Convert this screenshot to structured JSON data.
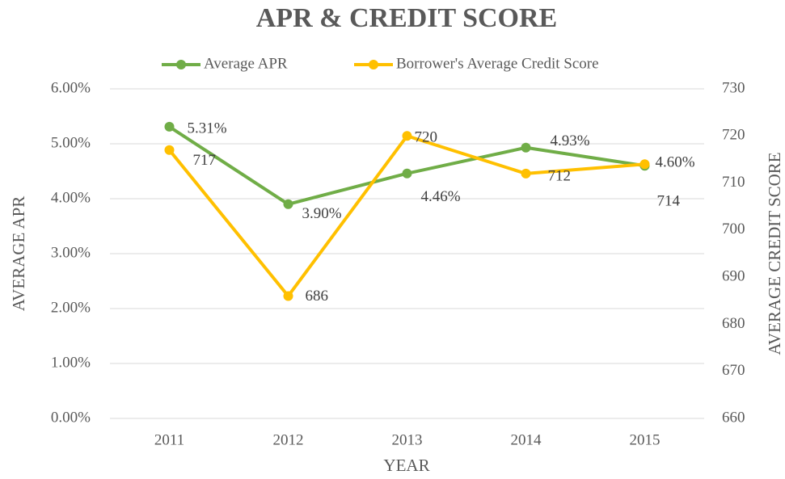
{
  "chart_data": {
    "type": "line",
    "title": "APR & CREDIT SCORE",
    "xlabel": "YEAR",
    "ylabel": "AVERAGE APR",
    "y2label": "AVERAGE CREDIT SCORE",
    "categories": [
      "2011",
      "2012",
      "2013",
      "2014",
      "2015"
    ],
    "series": [
      {
        "name": "Average APR",
        "color": "#70ad47",
        "values": [
          5.31,
          3.9,
          4.46,
          4.93,
          4.6
        ],
        "value_labels": [
          "5.31%",
          "3.90%",
          "4.46%",
          "4.93%",
          "4.60%"
        ]
      },
      {
        "name": "Borrower's Average Credit Score",
        "color": "#ffc000",
        "axis": "y2",
        "values": [
          717,
          686,
          720,
          712,
          714
        ]
      }
    ],
    "ylim": [
      0,
      6
    ],
    "yticks": [
      {
        "value": 0,
        "label": "0.00%"
      },
      {
        "value": 1,
        "label": "1.00%"
      },
      {
        "value": 2,
        "label": "2.00%"
      },
      {
        "value": 3,
        "label": "3.00%"
      },
      {
        "value": 4,
        "label": "4.00%"
      },
      {
        "value": 5,
        "label": "5.00%"
      },
      {
        "value": 6,
        "label": "6.00%"
      }
    ],
    "y2lim": [
      660,
      730
    ],
    "y2ticks": [
      660,
      670,
      680,
      690,
      700,
      710,
      720,
      730
    ],
    "grid": true,
    "legend": "top"
  }
}
